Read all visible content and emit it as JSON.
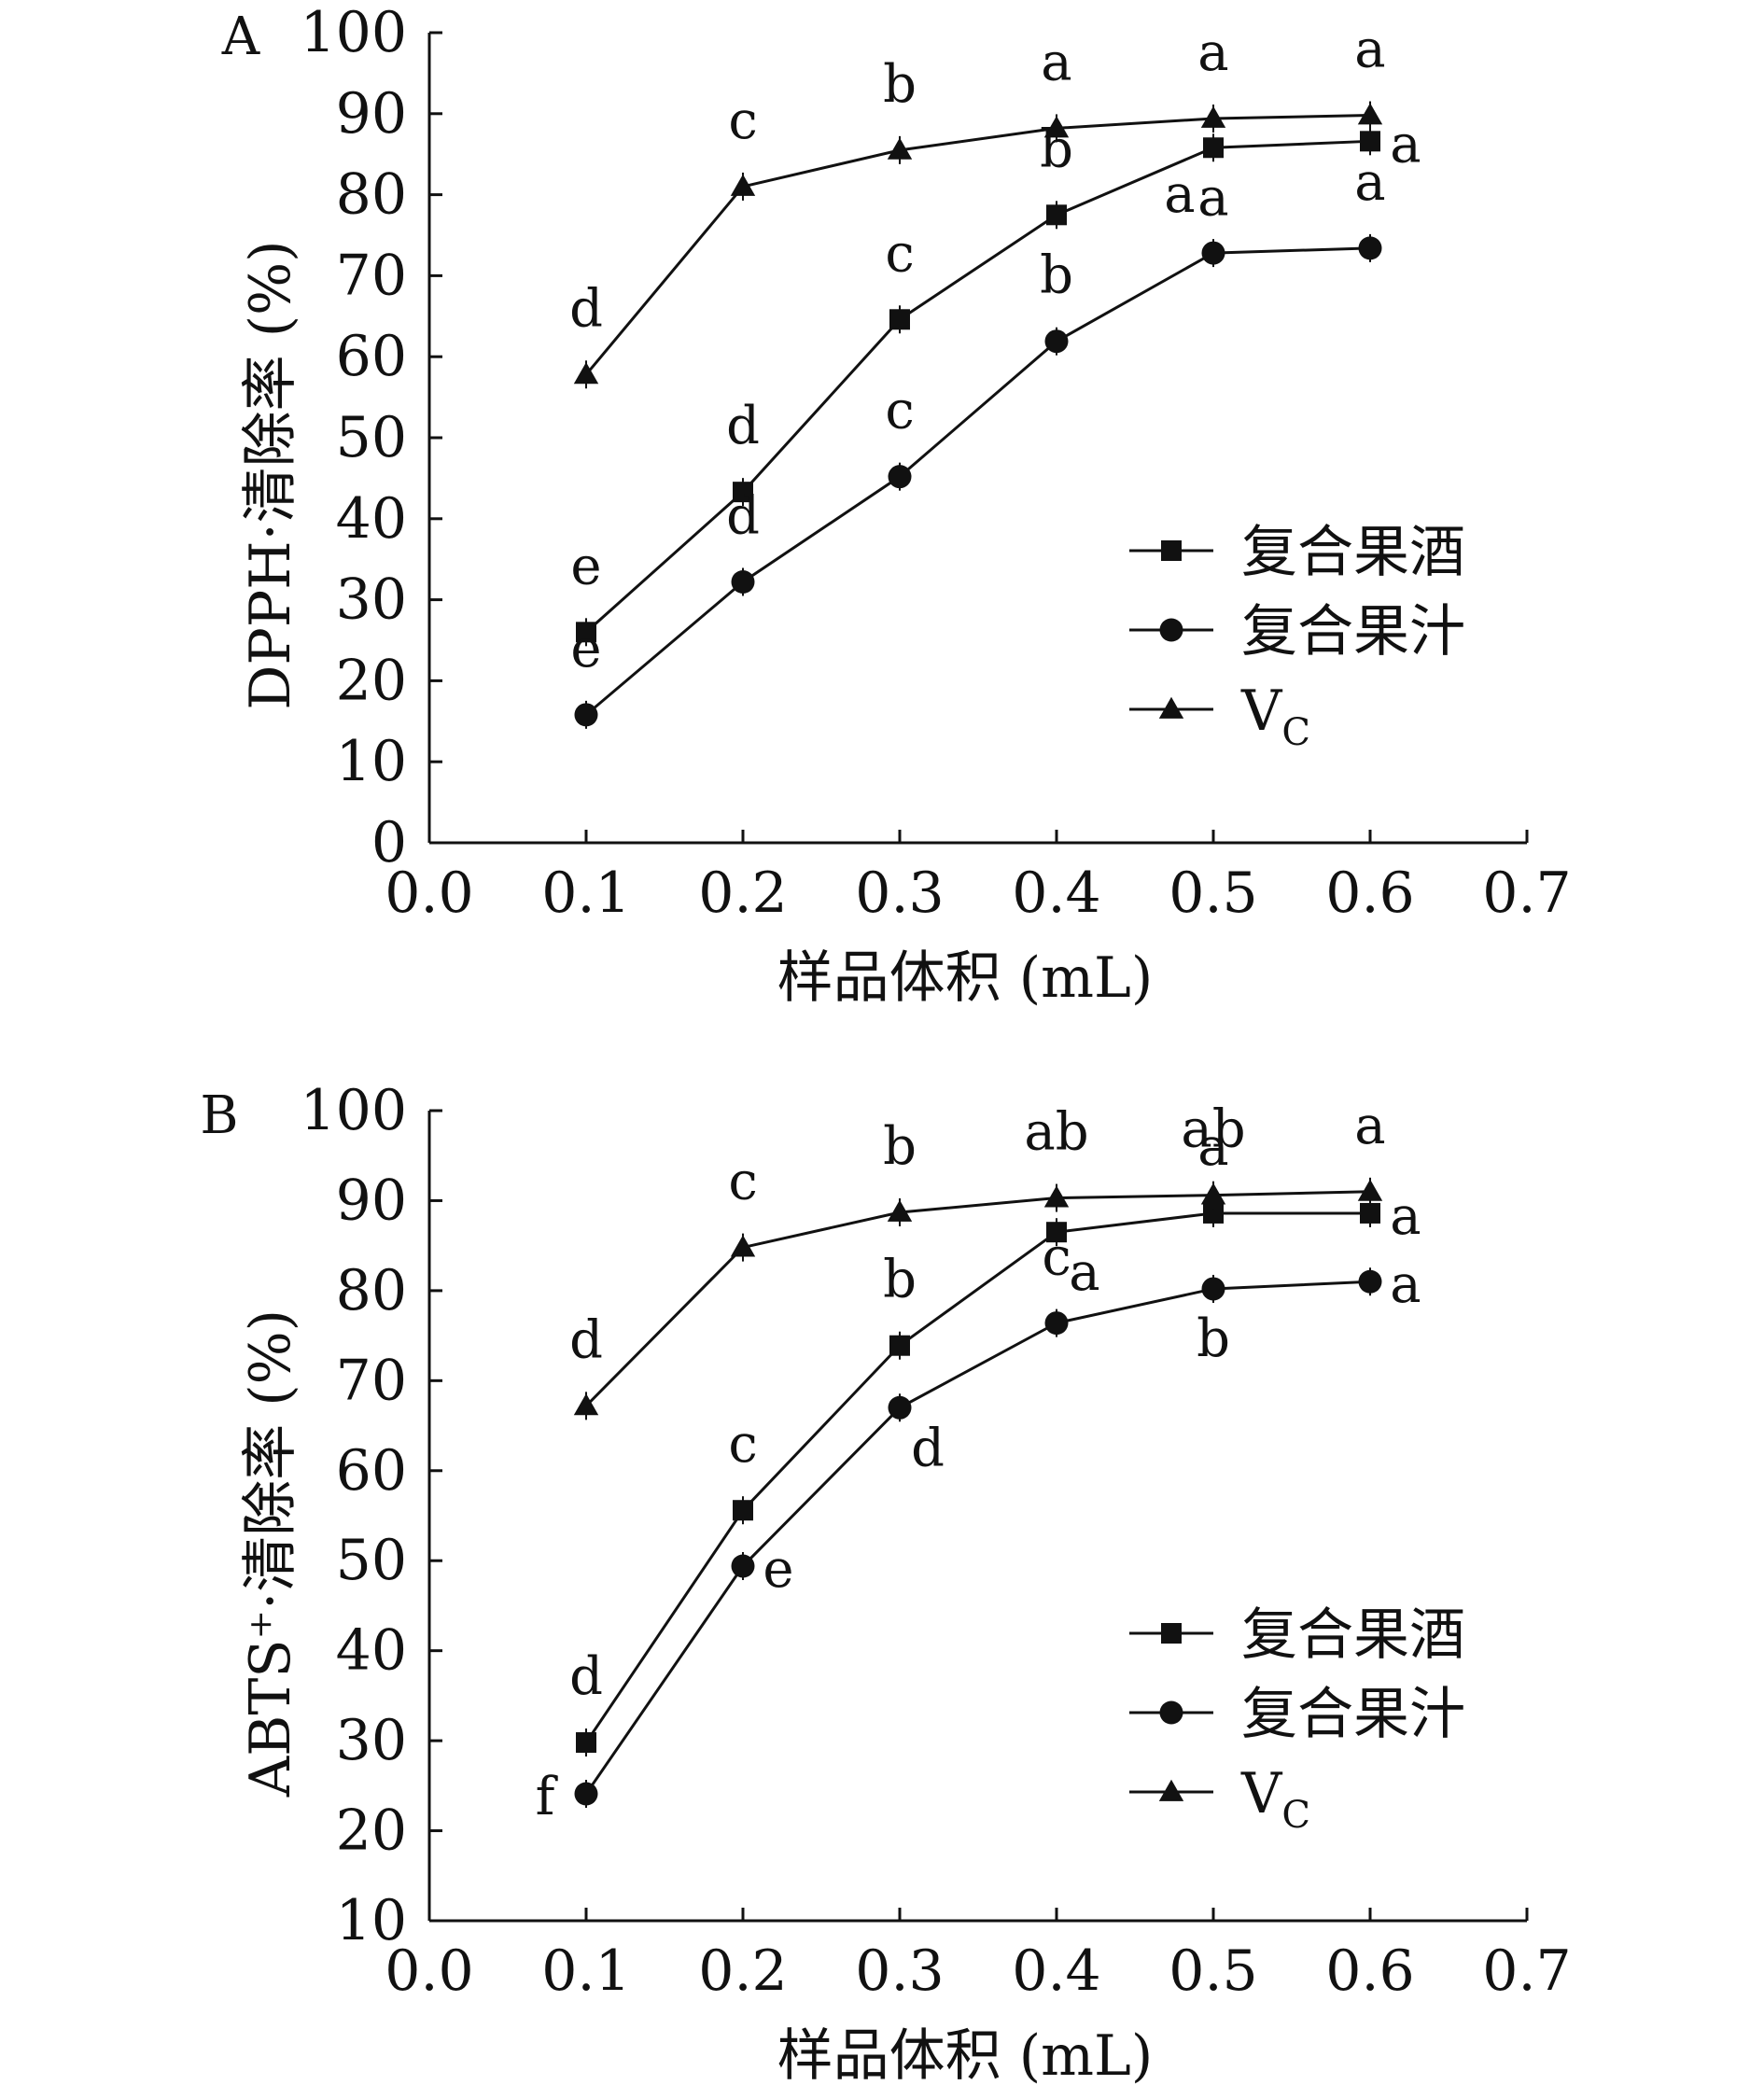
{
  "chart_data": [
    {
      "type": "line",
      "panel_label": "A",
      "title": "",
      "xlabel": "样品体积 (mL)",
      "ylabel": "DPPH·清除率 (%)",
      "xlim": [
        0.0,
        0.7
      ],
      "ylim": [
        0,
        100
      ],
      "xticks": [
        "0.0",
        "0.1",
        "0.2",
        "0.3",
        "0.4",
        "0.5",
        "0.6",
        "0.7"
      ],
      "yticks": [
        "0",
        "10",
        "20",
        "30",
        "40",
        "50",
        "60",
        "70",
        "80",
        "90",
        "100"
      ],
      "x": [
        0.1,
        0.2,
        0.3,
        0.4,
        0.5,
        0.6
      ],
      "legend_position": "bottom-right",
      "series": [
        {
          "name": "复合果酒",
          "marker": "square",
          "values": [
            26,
            43.3,
            64.6,
            77.5,
            85.8,
            86.6
          ],
          "letters": [
            "e",
            "d",
            "c",
            "b",
            "a",
            "a"
          ],
          "letter_positions": [
            "above",
            "above",
            "above",
            "above",
            "below",
            "right"
          ]
        },
        {
          "name": "复合果汁",
          "marker": "circle",
          "values": [
            15.8,
            32.2,
            45.2,
            61.9,
            72.8,
            73.4
          ],
          "letters": [
            "e",
            "d",
            "c",
            "b",
            "a",
            "a"
          ],
          "letter_positions": [
            "above",
            "above",
            "above",
            "above",
            "above-left",
            "above"
          ]
        },
        {
          "name": "V",
          "name_subscript": "C",
          "marker": "triangle",
          "values": [
            57.8,
            81,
            85.5,
            88.2,
            89.4,
            89.8
          ],
          "letters": [
            "d",
            "c",
            "b",
            "a",
            "a",
            "a"
          ],
          "letter_positions": [
            "above",
            "above",
            "above",
            "above",
            "above",
            "above"
          ]
        }
      ]
    },
    {
      "type": "line",
      "panel_label": "B",
      "title": "",
      "xlabel": "样品体积 (mL)",
      "ylabel": "ABTS⁺·清除率 (%)",
      "xlim": [
        0.0,
        0.7
      ],
      "ylim": [
        10,
        100
      ],
      "xticks": [
        "0.0",
        "0.1",
        "0.2",
        "0.3",
        "0.4",
        "0.5",
        "0.6",
        "0.7"
      ],
      "yticks": [
        "10",
        "20",
        "30",
        "40",
        "50",
        "60",
        "70",
        "80",
        "90",
        "100"
      ],
      "x": [
        0.1,
        0.2,
        0.3,
        0.4,
        0.5,
        0.6
      ],
      "legend_position": "bottom-right",
      "series": [
        {
          "name": "复合果酒",
          "marker": "square",
          "values": [
            29.8,
            55.6,
            73.9,
            86.5,
            88.6,
            88.6
          ],
          "letters": [
            "d",
            "c",
            "b",
            "a",
            "a",
            "a"
          ],
          "letter_positions": [
            "above",
            "above",
            "above",
            "below-right",
            "above",
            "right"
          ]
        },
        {
          "name": "复合果汁",
          "marker": "circle",
          "values": [
            24.1,
            49.4,
            67,
            76.4,
            80.2,
            81
          ],
          "letters": [
            "f",
            "e",
            "d",
            "c",
            "b",
            "a"
          ],
          "letter_positions": [
            "left",
            "right",
            "below-right",
            "above",
            "below",
            "right"
          ]
        },
        {
          "name": "V",
          "name_subscript": "C",
          "marker": "triangle",
          "values": [
            67.2,
            84.8,
            88.7,
            90.3,
            90.6,
            91
          ],
          "letters": [
            "d",
            "c",
            "b",
            "ab",
            "ab",
            "a"
          ],
          "letter_positions": [
            "above",
            "above",
            "above",
            "above",
            "above",
            "above"
          ]
        }
      ]
    }
  ]
}
